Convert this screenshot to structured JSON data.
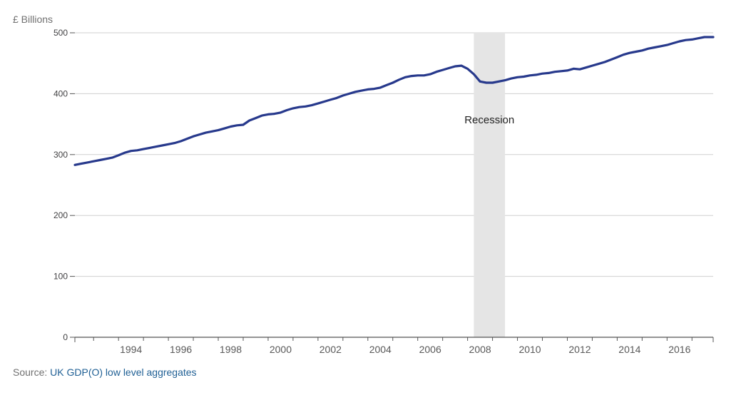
{
  "colors": {
    "line": "#27398c",
    "grid": "#d0d0d0",
    "recession_band": "#e5e5e5",
    "axis": "#555555",
    "link": "#206095"
  },
  "chart_data": {
    "type": "line",
    "title": "",
    "ylabel": "£ Billions",
    "xlabel": "",
    "ylim": [
      0,
      500
    ],
    "xlim": [
      1992.25,
      2017.85
    ],
    "yticks": [
      0,
      100,
      200,
      300,
      400,
      500
    ],
    "xticks": [
      "1994",
      "1996",
      "1998",
      "2000",
      "2002",
      "2004",
      "2006",
      "2008",
      "2010",
      "2012",
      "2014",
      "2016"
    ],
    "grid": true,
    "annotation": {
      "label": "Recession",
      "start": 2008.25,
      "end": 2009.5
    },
    "series": [
      {
        "name": "UK GDP",
        "x": [
          1992.25,
          1992.5,
          1992.75,
          1993.0,
          1993.25,
          1993.5,
          1993.75,
          1994.0,
          1994.25,
          1994.5,
          1994.75,
          1995.0,
          1995.25,
          1995.5,
          1995.75,
          1996.0,
          1996.25,
          1996.5,
          1996.75,
          1997.0,
          1997.25,
          1997.5,
          1997.75,
          1998.0,
          1998.25,
          1998.5,
          1998.75,
          1999.0,
          1999.25,
          1999.5,
          1999.75,
          2000.0,
          2000.25,
          2000.5,
          2000.75,
          2001.0,
          2001.25,
          2001.5,
          2001.75,
          2002.0,
          2002.25,
          2002.5,
          2002.75,
          2003.0,
          2003.25,
          2003.5,
          2003.75,
          2004.0,
          2004.25,
          2004.5,
          2004.75,
          2005.0,
          2005.25,
          2005.5,
          2005.75,
          2006.0,
          2006.25,
          2006.5,
          2006.75,
          2007.0,
          2007.25,
          2007.5,
          2007.75,
          2008.0,
          2008.25,
          2008.5,
          2008.75,
          2009.0,
          2009.25,
          2009.5,
          2009.75,
          2010.0,
          2010.25,
          2010.5,
          2010.75,
          2011.0,
          2011.25,
          2011.5,
          2011.75,
          2012.0,
          2012.25,
          2012.5,
          2012.75,
          2013.0,
          2013.25,
          2013.5,
          2013.75,
          2014.0,
          2014.25,
          2014.5,
          2014.75,
          2015.0,
          2015.25,
          2015.5,
          2015.75,
          2016.0,
          2016.25,
          2016.5,
          2016.75,
          2017.0,
          2017.25,
          2017.5,
          2017.85
        ],
        "values": [
          283,
          285,
          287,
          289,
          291,
          293,
          295,
          299,
          303,
          306,
          307,
          309,
          311,
          313,
          315,
          317,
          319,
          322,
          326,
          330,
          333,
          336,
          338,
          340,
          343,
          346,
          348,
          349,
          356,
          360,
          364,
          366,
          367,
          369,
          373,
          376,
          378,
          379,
          381,
          384,
          387,
          390,
          393,
          397,
          400,
          403,
          405,
          407,
          408,
          410,
          414,
          418,
          423,
          427,
          429,
          430,
          430,
          432,
          436,
          439,
          442,
          445,
          446,
          441,
          432,
          420,
          418,
          418,
          420,
          422,
          425,
          427,
          428,
          430,
          431,
          433,
          434,
          436,
          437,
          438,
          441,
          440,
          443,
          446,
          449,
          452,
          456,
          460,
          464,
          467,
          469,
          471,
          474,
          476,
          478,
          480,
          483,
          486,
          488,
          489,
          491,
          493,
          493
        ]
      }
    ]
  },
  "footer": {
    "source_prefix": "Source: ",
    "source_link": "UK GDP(O) low level aggregates"
  }
}
